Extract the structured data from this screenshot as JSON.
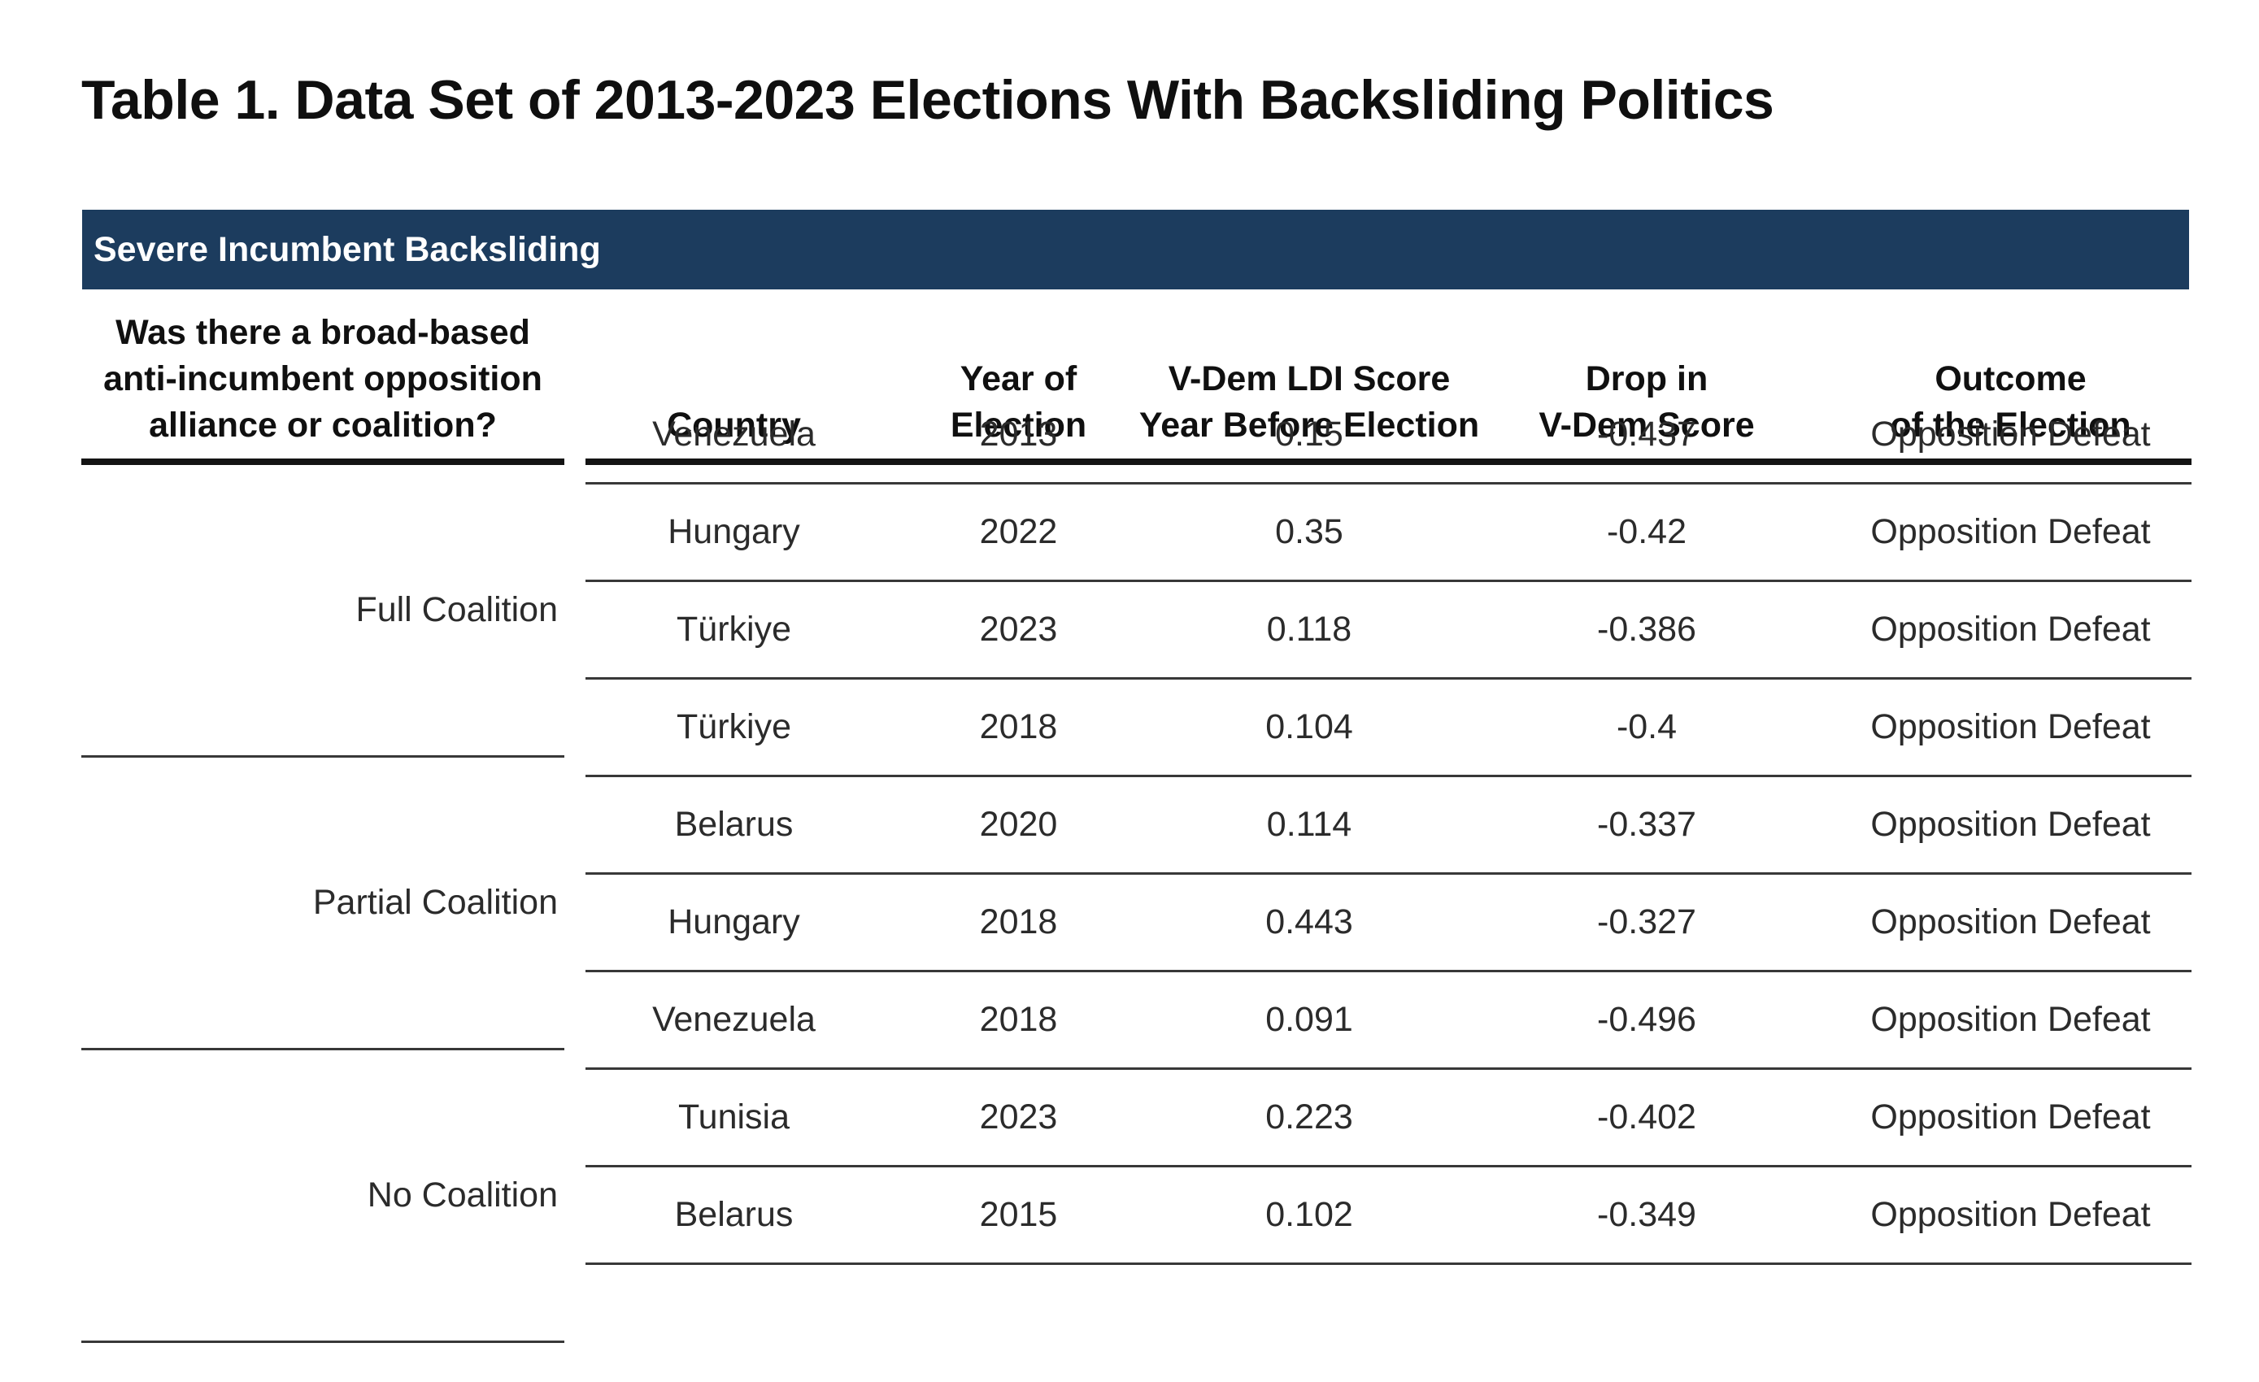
{
  "title": "Table 1. Data Set of 2013-2023 Elections With Backsliding Politics",
  "colors": {
    "band_bg": "#1C3C5E",
    "band_text": "#FFFFFF",
    "header_rule": "#141414",
    "row_rule": "#383838",
    "body_text": "#2B2B2B"
  },
  "chart_data": {
    "type": "table",
    "title": "Table 1. Data Set of 2013-2023 Elections With Backsliding Politics",
    "section_header": "Severe Incumbent Backsliding",
    "columns": {
      "coalition": [
        "Was there a broad-based",
        "anti-incumbent opposition",
        "alliance or coalition?"
      ],
      "country": "Country",
      "year": [
        "Year of",
        "Election"
      ],
      "ldi": [
        "V-Dem LDI Score",
        "Year Before Election"
      ],
      "drop": [
        "Drop in",
        "V-Dem Score"
      ],
      "outcome": [
        "Outcome",
        "of the Election"
      ]
    },
    "groups": [
      {
        "label": "Full Coalition",
        "rows": [
          {
            "country": "Venezuela",
            "year": "2013",
            "ldi_score": "0.15",
            "drop": "-0.437",
            "outcome": "Opposition Defeat"
          },
          {
            "country": "Hungary",
            "year": "2022",
            "ldi_score": "0.35",
            "drop": "-0.42",
            "outcome": "Opposition Defeat"
          },
          {
            "country": "Türkiye",
            "year": "2023",
            "ldi_score": "0.118",
            "drop": "-0.386",
            "outcome": "Opposition Defeat"
          }
        ]
      },
      {
        "label": "Partial Coalition",
        "rows": [
          {
            "country": "Türkiye",
            "year": "2018",
            "ldi_score": "0.104",
            "drop": "-0.4",
            "outcome": "Opposition Defeat"
          },
          {
            "country": "Belarus",
            "year": "2020",
            "ldi_score": "0.114",
            "drop": "-0.337",
            "outcome": "Opposition Defeat"
          },
          {
            "country": "Hungary",
            "year": "2018",
            "ldi_score": "0.443",
            "drop": "-0.327",
            "outcome": "Opposition Defeat"
          }
        ]
      },
      {
        "label": "No Coalition",
        "rows": [
          {
            "country": "Venezuela",
            "year": "2018",
            "ldi_score": "0.091",
            "drop": "-0.496",
            "outcome": "Opposition Defeat"
          },
          {
            "country": "Tunisia",
            "year": "2023",
            "ldi_score": "0.223",
            "drop": "-0.402",
            "outcome": "Opposition Defeat"
          },
          {
            "country": "Belarus",
            "year": "2015",
            "ldi_score": "0.102",
            "drop": "-0.349",
            "outcome": "Opposition Defeat"
          }
        ]
      }
    ]
  }
}
